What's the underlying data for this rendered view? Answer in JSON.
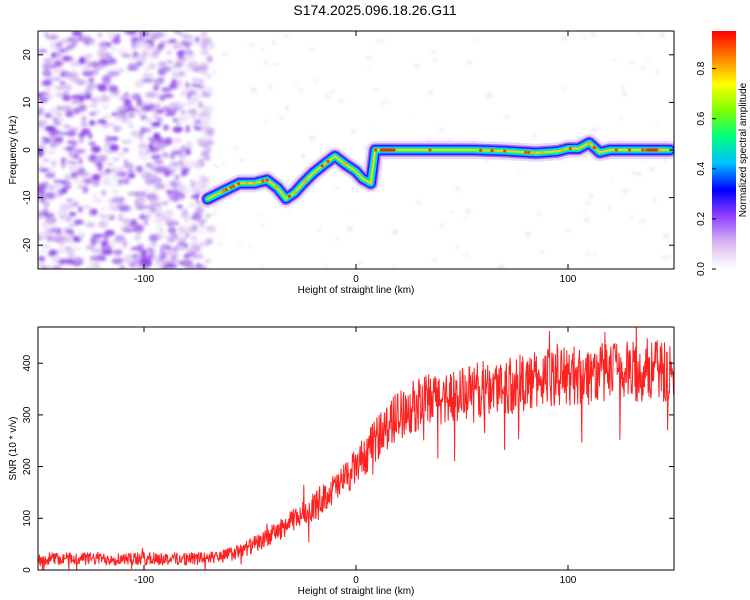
{
  "title": "S174.2025.096.18.26.G11",
  "chart_data": [
    {
      "type": "heatmap",
      "xlabel": "Height of straight line (km)",
      "ylabel": "Frequency (Hz)",
      "xlim": [
        -150,
        150
      ],
      "ylim": [
        -25,
        25
      ],
      "xticks": [
        -100,
        0,
        100
      ],
      "yticks": [
        -20,
        -10,
        0,
        10,
        20
      ],
      "colorbar": {
        "label": "Normalized spectral amplitude",
        "range": [
          0,
          0.95
        ],
        "ticks": [
          0.0,
          0.2,
          0.4,
          0.6,
          0.8
        ],
        "colors": [
          "#ffffff",
          "#d8b8f0",
          "#9040ff",
          "#0000ff",
          "#00c0ff",
          "#00ff80",
          "#80ff00",
          "#ffff00",
          "#ff8000",
          "#ff0000"
        ]
      },
      "noise_region_x": [
        -150,
        -68
      ],
      "ridge": {
        "x": [
          -70,
          -62,
          -55,
          -48,
          -42,
          -37,
          -33,
          -29,
          -25,
          -20,
          -15,
          -10,
          -5,
          0,
          3,
          7,
          9,
          15,
          25,
          40,
          55,
          70,
          85,
          95,
          100,
          105,
          110,
          115,
          120,
          130,
          140,
          148
        ],
        "y": [
          -10.3,
          -8.5,
          -7,
          -7,
          -6.3,
          -8,
          -10.2,
          -9,
          -7,
          -4.8,
          -3,
          -1.3,
          -3,
          -4.5,
          -6,
          -7,
          0,
          0,
          0,
          0,
          0,
          -0.2,
          -0.6,
          -0.3,
          0.3,
          0.3,
          1.5,
          -0.5,
          0,
          0,
          0,
          0
        ],
        "peak_x": [
          15,
          140
        ]
      }
    },
    {
      "type": "line",
      "xlabel": "Height of straight line (km)",
      "ylabel": "SNR (10 * v/v)",
      "xlim": [
        -150,
        150
      ],
      "ylim": [
        0,
        470
      ],
      "xticks": [
        -100,
        0,
        100
      ],
      "yticks": [
        0,
        100,
        200,
        300,
        400
      ],
      "color": "#ff2020",
      "series": [
        {
          "x": [
            -150,
            -130,
            -110,
            -90,
            -75,
            -65,
            -60,
            -55,
            -50,
            -45,
            -40,
            -35,
            -30,
            -25,
            -20,
            -15,
            -10,
            -5,
            0,
            5,
            10,
            15,
            20,
            25,
            30,
            35,
            40,
            50,
            60,
            70,
            80,
            90,
            100,
            110,
            120,
            130,
            140,
            148
          ],
          "values": [
            22,
            22,
            22,
            22,
            22,
            25,
            30,
            35,
            45,
            55,
            68,
            80,
            95,
            110,
            125,
            142,
            158,
            175,
            200,
            225,
            255,
            280,
            300,
            313,
            320,
            328,
            333,
            340,
            350,
            358,
            362,
            372,
            375,
            378,
            382,
            384,
            385,
            385
          ]
        }
      ]
    }
  ]
}
